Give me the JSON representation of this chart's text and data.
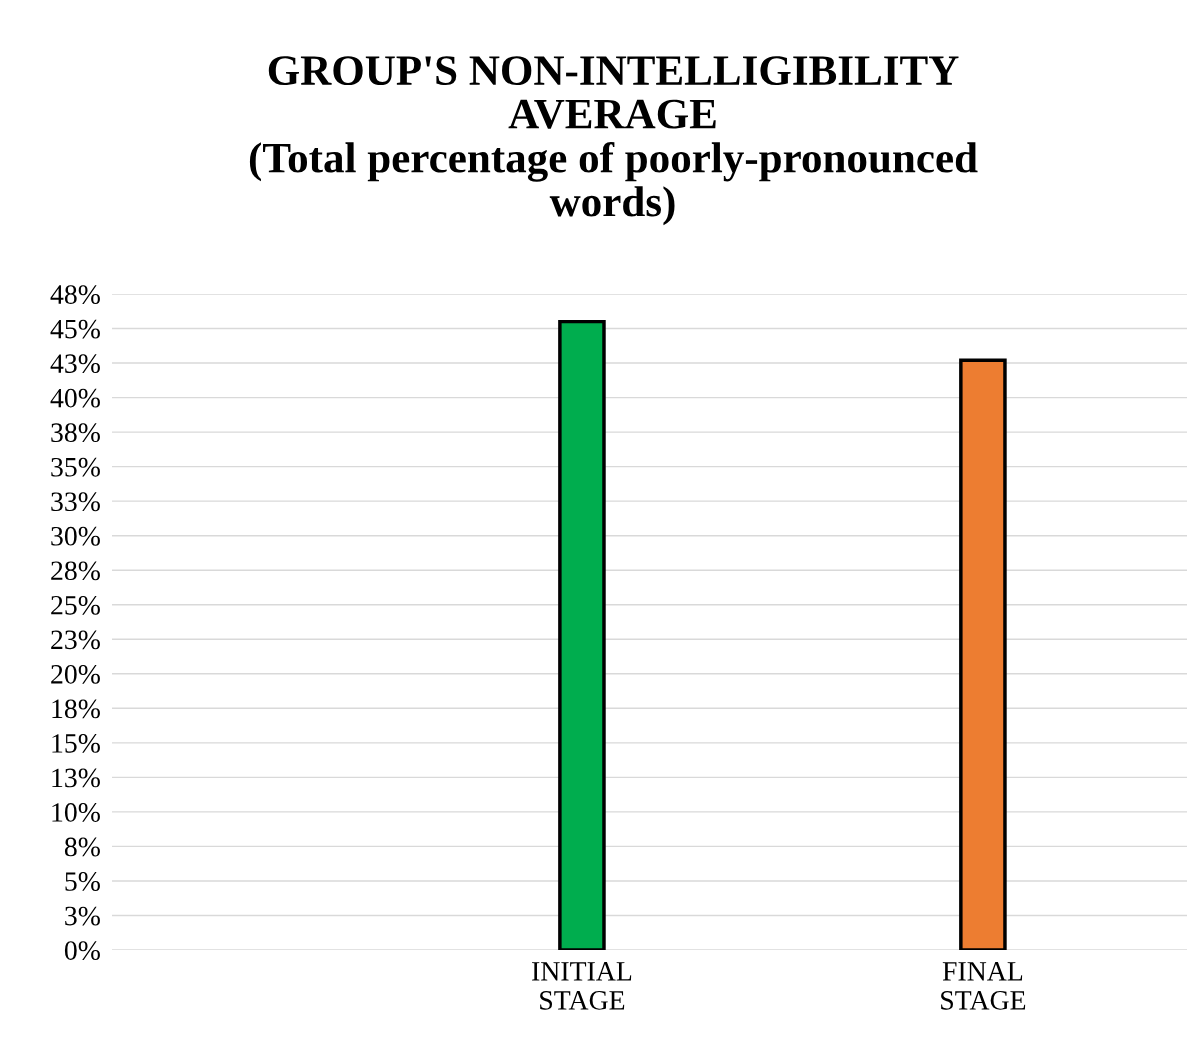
{
  "chart_data": {
    "type": "bar",
    "title": "GROUP'S NON-INTELLIGIBILITY\nAVERAGE\n(Total percentage of poorly-pronounced\nwords)",
    "categories": [
      "INITIAL\nSTAGE",
      "FINAL\nSTAGE"
    ],
    "values": [
      45.5,
      42.7
    ],
    "colors": [
      "#00ad4e",
      "#ed7d31"
    ],
    "ylim": [
      0,
      47.5
    ],
    "yticks": [
      {
        "value": 0,
        "label": "0%"
      },
      {
        "value": 2.5,
        "label": "3%"
      },
      {
        "value": 5,
        "label": "5%"
      },
      {
        "value": 7.5,
        "label": "8%"
      },
      {
        "value": 10,
        "label": "10%"
      },
      {
        "value": 12.5,
        "label": "13%"
      },
      {
        "value": 15,
        "label": "15%"
      },
      {
        "value": 17.5,
        "label": "18%"
      },
      {
        "value": 20,
        "label": "20%"
      },
      {
        "value": 22.5,
        "label": "23%"
      },
      {
        "value": 25,
        "label": "25%"
      },
      {
        "value": 27.5,
        "label": "28%"
      },
      {
        "value": 30,
        "label": "30%"
      },
      {
        "value": 32.5,
        "label": "33%"
      },
      {
        "value": 35,
        "label": "35%"
      },
      {
        "value": 37.5,
        "label": "38%"
      },
      {
        "value": 40,
        "label": "40%"
      },
      {
        "value": 42.5,
        "label": "43%"
      },
      {
        "value": 45,
        "label": "45%"
      },
      {
        "value": 47.5,
        "label": "48%"
      }
    ],
    "grid": "y"
  }
}
